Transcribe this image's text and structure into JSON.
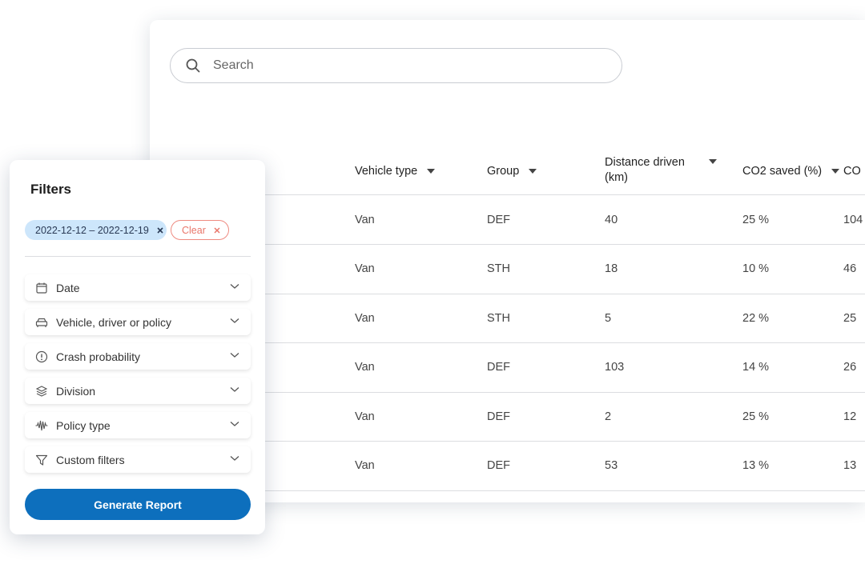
{
  "search": {
    "placeholder": "Search"
  },
  "table": {
    "columns": [
      {
        "label": "Vehicle type",
        "sortable": true
      },
      {
        "label": "Group",
        "sortable": true
      },
      {
        "label": "Distance driven (km)",
        "sortable": true
      },
      {
        "label": "CO2 saved (%)",
        "sortable": true
      },
      {
        "label": "CO",
        "sortable": false
      }
    ],
    "rows": [
      [
        "Van",
        "DEF",
        "40",
        "25 %",
        "104"
      ],
      [
        "Van",
        "STH",
        "18",
        "10 %",
        "46"
      ],
      [
        "Van",
        "STH",
        "5",
        "22 %",
        "25"
      ],
      [
        "Van",
        "DEF",
        "103",
        "14 %",
        "26"
      ],
      [
        "Van",
        "DEF",
        "2",
        "25 %",
        "12"
      ],
      [
        "Van",
        "DEF",
        "53",
        "13 %",
        "13"
      ]
    ]
  },
  "filters": {
    "title": "Filters",
    "active_chip": "2022-12-12 – 2022-12-19",
    "clear_label": "Clear",
    "items": [
      {
        "label": "Date",
        "icon": "calendar-icon"
      },
      {
        "label": "Vehicle, driver or policy",
        "icon": "car-icon"
      },
      {
        "label": "Crash probability",
        "icon": "alert-circle-icon"
      },
      {
        "label": "Division",
        "icon": "layers-icon"
      },
      {
        "label": "Policy type",
        "icon": "waveform-icon"
      },
      {
        "label": "Custom filters",
        "icon": "funnel-icon"
      }
    ],
    "generate_label": "Generate Report"
  },
  "colors": {
    "accent": "#0d6fbd",
    "chip": "#cde6fb",
    "clear": "#e9766a"
  }
}
